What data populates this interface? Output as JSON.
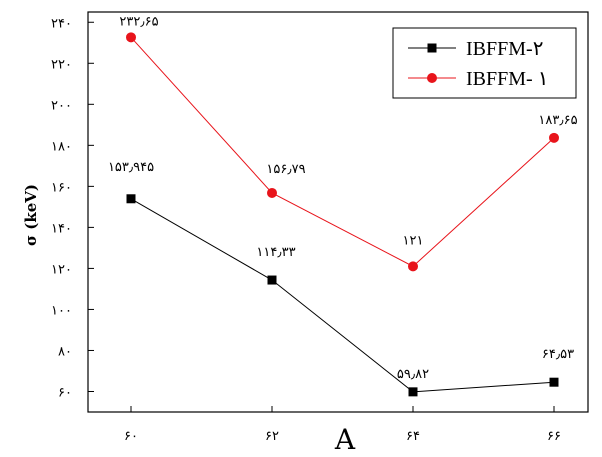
{
  "chart_data": {
    "type": "line",
    "title": "",
    "xlabel": "A",
    "ylabel": "σ (keV)",
    "x": [
      60,
      62,
      64,
      66
    ],
    "x_tick_labels": [
      "۶۰",
      "۶۲",
      "۶۴",
      "۶۶"
    ],
    "ylim": [
      50,
      245
    ],
    "y_ticks": [
      60,
      80,
      100,
      120,
      140,
      160,
      180,
      200,
      220,
      240
    ],
    "y_tick_labels": [
      "۶۰",
      "۸۰",
      "۱۰۰",
      "۱۲۰",
      "۱۴۰",
      "۱۶۰",
      "۱۸۰",
      "۲۰۰",
      "۲۲۰",
      "۲۴۰"
    ],
    "grid": false,
    "legend": "top-right",
    "series": [
      {
        "name": "IBFFM-۲",
        "color": "#000000",
        "marker": "square",
        "values": [
          153.945,
          114.33,
          59.82,
          64.53
        ],
        "labels": [
          "۱۵۳٫۹۴۵",
          "۱۱۴٫۳۳",
          "۵۹٫۸۲",
          "۶۴٫۵۳"
        ]
      },
      {
        "name": "IBFFM- ۱",
        "color": "#e8141b",
        "marker": "circle",
        "values": [
          232.65,
          156.79,
          121,
          183.65
        ],
        "labels": [
          "۲۳۲٫۶۵",
          "۱۵۶٫۷۹",
          "۱۲۱",
          "۱۸۳٫۶۵"
        ]
      }
    ]
  }
}
